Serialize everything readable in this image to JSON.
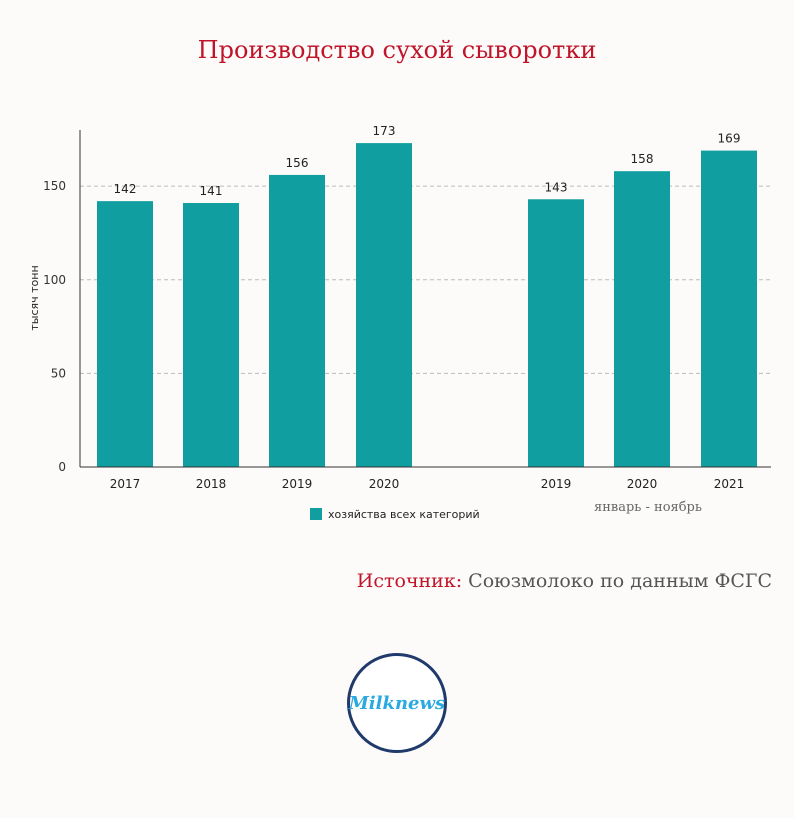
{
  "title": "Производство сухой сыворотки",
  "source": {
    "label": "Источник:",
    "text": "Союзмолоко по данным ФСГС"
  },
  "logo": {
    "text": "Milknews"
  },
  "chart_data": {
    "type": "bar",
    "categories": [
      "2017",
      "2018",
      "2019",
      "2020",
      "2019",
      "2020",
      "2021"
    ],
    "groups": [
      {
        "label": "",
        "categories": [
          "2017",
          "2018",
          "2019",
          "2020"
        ]
      },
      {
        "label": "январь - ноябрь",
        "categories": [
          "2019",
          "2020",
          "2021"
        ]
      }
    ],
    "series": [
      {
        "name": "хозяйства всех категорий",
        "values": [
          142,
          141,
          156,
          173,
          143,
          158,
          169
        ],
        "color": "#109ea0"
      }
    ],
    "ylabel": "тысяч тонн",
    "xlabel": "",
    "ylim": [
      0,
      180
    ],
    "yticks": [
      0,
      50,
      100,
      150
    ],
    "grid": true,
    "legend": "bottom-center"
  }
}
